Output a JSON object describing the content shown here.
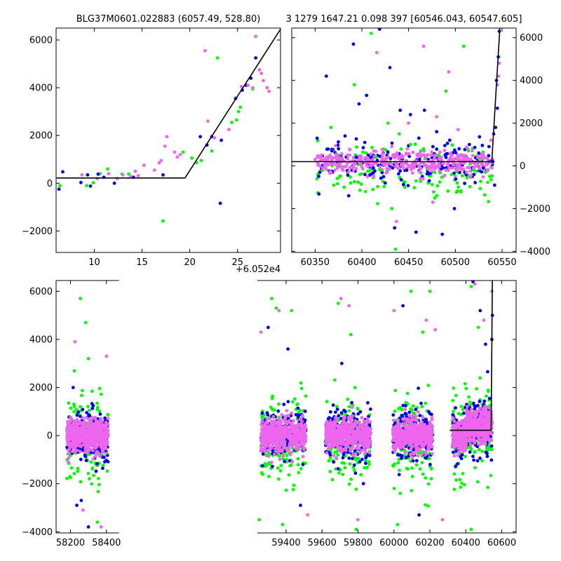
{
  "header": {
    "left_title": "BLG37M0601.022883 (6057.49, 528.80)",
    "right_title": "3 1279 1647.21 0.098 397 [60546.043, 60547.605]"
  },
  "colors": {
    "green": "#00ff00",
    "blue": "#0000ee",
    "magenta": "#ee66ee",
    "model": "#000000"
  },
  "chart_data": [
    {
      "type": "scatter",
      "panel": "top-left zoom (days relative to offset)",
      "xlim": [
        6,
        29.5
      ],
      "ylim": [
        -2900,
        6500
      ],
      "x_ticks": [
        10,
        15,
        20,
        25
      ],
      "y_ticks": [
        -2000,
        0,
        2000,
        4000,
        6000
      ],
      "x_offset_label": "+6.052e4",
      "model": [
        [
          6,
          220
        ],
        [
          19.5,
          220
        ],
        [
          29.5,
          6450
        ]
      ],
      "series": [
        {
          "color": "green",
          "points": [
            [
              6.4,
              -100
            ],
            [
              9.2,
              -100
            ],
            [
              9.9,
              20
            ],
            [
              10.6,
              400
            ],
            [
              11.4,
              600
            ],
            [
              12.9,
              380
            ],
            [
              13.6,
              380
            ],
            [
              17.2,
              -1580
            ],
            [
              19.3,
              1300
            ],
            [
              20.2,
              1050
            ],
            [
              20.7,
              860
            ],
            [
              21.2,
              950
            ],
            [
              22.3,
              1350
            ],
            [
              22.9,
              5250
            ],
            [
              24.4,
              2550
            ],
            [
              24.9,
              2650
            ],
            [
              25.1,
              3000
            ],
            [
              25.3,
              3180
            ],
            [
              26.6,
              3950
            ]
          ]
        },
        {
          "color": "blue",
          "points": [
            [
              6.3,
              -250
            ],
            [
              6.7,
              480
            ],
            [
              8.6,
              30
            ],
            [
              9.3,
              350
            ],
            [
              9.6,
              -120
            ],
            [
              10.4,
              380
            ],
            [
              11.0,
              250
            ],
            [
              12.1,
              0
            ],
            [
              14.1,
              250
            ],
            [
              17.2,
              350
            ],
            [
              21.1,
              1950
            ],
            [
              21.8,
              1600
            ],
            [
              22.3,
              1950
            ],
            [
              23.2,
              -840
            ],
            [
              23.3,
              1800
            ],
            [
              24.8,
              3550
            ],
            [
              25.5,
              3900
            ],
            [
              25.9,
              4100
            ],
            [
              26.4,
              4400
            ],
            [
              26.9,
              5250
            ]
          ]
        },
        {
          "color": "magenta",
          "points": [
            [
              8.7,
              350
            ],
            [
              10.3,
              200
            ],
            [
              11.5,
              400
            ],
            [
              12.4,
              200
            ],
            [
              13.0,
              350
            ],
            [
              13.8,
              280
            ],
            [
              14.3,
              500
            ],
            [
              14.6,
              320
            ],
            [
              15.2,
              750
            ],
            [
              16.3,
              550
            ],
            [
              16.8,
              850
            ],
            [
              17.0,
              950
            ],
            [
              17.4,
              1550
            ],
            [
              17.6,
              1950
            ],
            [
              18.4,
              1300
            ],
            [
              18.7,
              1100
            ],
            [
              19.0,
              1200
            ],
            [
              21.6,
              5550
            ],
            [
              21.9,
              2600
            ],
            [
              22.6,
              1900
            ],
            [
              24.1,
              2250
            ],
            [
              25.4,
              4050
            ],
            [
              26.1,
              4100
            ],
            [
              26.6,
              4000
            ],
            [
              26.9,
              6150
            ],
            [
              27.3,
              4750
            ],
            [
              27.5,
              4600
            ],
            [
              27.7,
              4300
            ],
            [
              28.1,
              4000
            ],
            [
              28.3,
              3850
            ]
          ]
        }
      ]
    },
    {
      "type": "scatter",
      "panel": "top-right",
      "xlim": [
        60325,
        60565
      ],
      "ylim": [
        -4050,
        6450
      ],
      "x_ticks": [
        60350,
        60400,
        60450,
        60500,
        60550
      ],
      "y_ticks": [
        -4000,
        -2000,
        0,
        2000,
        4000,
        6000
      ],
      "model": [
        [
          60325,
          200
        ],
        [
          60539,
          200
        ],
        [
          60547.6,
          6450
        ]
      ],
      "series": [
        {
          "color": "green",
          "points": [
            [
              60352,
              -600
            ],
            [
              60358,
              -200
            ],
            [
              60367,
              1800
            ],
            [
              60370,
              -900
            ],
            [
              60376,
              -500
            ],
            [
              60381,
              -1000
            ],
            [
              60388,
              -800
            ],
            [
              60392,
              3800
            ],
            [
              60398,
              -400
            ],
            [
              60404,
              -1200
            ],
            [
              60410,
              6200
            ],
            [
              60415,
              400
            ],
            [
              60420,
              -200
            ],
            [
              60428,
              2000
            ],
            [
              60432,
              -2000
            ],
            [
              60436,
              -3900
            ],
            [
              60440,
              1500
            ],
            [
              60446,
              -1000
            ],
            [
              60452,
              1000
            ],
            [
              60458,
              -700
            ],
            [
              60466,
              800
            ],
            [
              60471,
              -800
            ],
            [
              60478,
              -1500
            ],
            [
              60482,
              500
            ],
            [
              60490,
              3500
            ],
            [
              60496,
              -400
            ],
            [
              60502,
              -800
            ],
            [
              60509,
              5600
            ],
            [
              60514,
              700
            ],
            [
              60520,
              -200
            ],
            [
              60526,
              300
            ],
            [
              60532,
              -300
            ]
          ]
        },
        {
          "color": "blue",
          "points": [
            [
              60355,
              -300
            ],
            [
              60362,
              4200
            ],
            [
              60368,
              700
            ],
            [
              60375,
              800
            ],
            [
              60382,
              1400
            ],
            [
              60386,
              -1400
            ],
            [
              60391,
              5700
            ],
            [
              60394,
              400
            ],
            [
              60397,
              2900
            ],
            [
              60405,
              3300
            ],
            [
              60412,
              -100
            ],
            [
              60419,
              6400
            ],
            [
              60425,
              -800
            ],
            [
              60430,
              4600
            ],
            [
              60435,
              -2900
            ],
            [
              60441,
              2600
            ],
            [
              60448,
              -200
            ],
            [
              60452,
              2400
            ],
            [
              60458,
              -3100
            ],
            [
              60461,
              1300
            ],
            [
              60467,
              2600
            ],
            [
              60472,
              -700
            ],
            [
              60476,
              900
            ],
            [
              60480,
              1600
            ],
            [
              60486,
              -3200
            ],
            [
              60490,
              400
            ],
            [
              60494,
              1200
            ],
            [
              60499,
              -2000
            ],
            [
              60504,
              800
            ],
            [
              60510,
              -300
            ],
            [
              60515,
              1000
            ],
            [
              60520,
              -400
            ],
            [
              60525,
              600
            ],
            [
              60530,
              -100
            ],
            [
              60536,
              900
            ],
            [
              60540,
              200
            ],
            [
              60541,
              1500
            ],
            [
              60542,
              -900
            ],
            [
              60543,
              1800
            ],
            [
              60544,
              4000
            ],
            [
              60545,
              2700
            ],
            [
              60546,
              5100
            ],
            [
              60547,
              6300
            ]
          ]
        },
        {
          "color": "magenta",
          "points": [
            [
              60350,
              300
            ],
            [
              60358,
              -100
            ],
            [
              60366,
              500
            ],
            [
              60373,
              250
            ],
            [
              60380,
              -200
            ],
            [
              60387,
              500
            ],
            [
              60393,
              100
            ],
            [
              60399,
              300
            ],
            [
              60406,
              -500
            ],
            [
              60412,
              200
            ],
            [
              60416,
              5300
            ],
            [
              60422,
              400
            ],
            [
              60427,
              -300
            ],
            [
              60432,
              900
            ],
            [
              60437,
              -2600
            ],
            [
              60443,
              400
            ],
            [
              60450,
              2000
            ],
            [
              60455,
              -100
            ],
            [
              60462,
              600
            ],
            [
              60466,
              5600
            ],
            [
              60471,
              200
            ],
            [
              60476,
              -1700
            ],
            [
              60480,
              2300
            ],
            [
              60485,
              400
            ],
            [
              60490,
              -200
            ],
            [
              60493,
              4400
            ],
            [
              60497,
              300
            ],
            [
              60503,
              1700
            ],
            [
              60508,
              500
            ],
            [
              60512,
              -300
            ],
            [
              60518,
              700
            ],
            [
              60524,
              100
            ],
            [
              60530,
              400
            ],
            [
              60538,
              1200
            ],
            [
              60545,
              3800
            ],
            [
              60546,
              4200
            ],
            [
              60547,
              4800
            ]
          ]
        }
      ]
    },
    {
      "type": "scatter",
      "panel": "bottom full light curve",
      "xlim": [
        58120,
        60680
      ],
      "ylim": [
        -4050,
        6450
      ],
      "x_break": [
        58470,
        59240
      ],
      "x_ticks": [
        58200,
        58400,
        59400,
        59600,
        59800,
        60000,
        60200,
        60400,
        60600
      ],
      "y_ticks": [
        -4000,
        -2000,
        0,
        2000,
        4000,
        6000
      ],
      "model": [
        [
          60310,
          220
        ],
        [
          60541,
          220
        ],
        [
          60547.6,
          6450
        ]
      ],
      "seasons": [
        [
          58180,
          58410
        ],
        [
          59260,
          59510
        ],
        [
          59620,
          59870
        ],
        [
          59995,
          60215
        ],
        [
          60325,
          60545
        ]
      ],
      "outliers": {
        "green": [
          [
            58255,
            5700
          ],
          [
            58285,
            4700
          ],
          [
            58300,
            3200
          ],
          [
            59320,
            5700
          ],
          [
            59345,
            5300
          ],
          [
            59430,
            5200
          ],
          [
            59380,
            -3700
          ],
          [
            59250,
            -3500
          ],
          [
            59690,
            5500
          ],
          [
            59760,
            4200
          ],
          [
            59790,
            -3900
          ],
          [
            60095,
            6000
          ],
          [
            60160,
            4300
          ],
          [
            60200,
            6000
          ],
          [
            60430,
            6200
          ],
          [
            60470,
            4500
          ],
          [
            60430,
            -3900
          ],
          [
            60020,
            -3700
          ],
          [
            58350,
            -3600
          ]
        ],
        "blue": [
          [
            58215,
            2000
          ],
          [
            58235,
            -2900
          ],
          [
            58260,
            -2700
          ],
          [
            58300,
            -3800
          ],
          [
            59300,
            4500
          ],
          [
            59410,
            3600
          ],
          [
            59480,
            -2900
          ],
          [
            59710,
            3000
          ],
          [
            59830,
            -2000
          ],
          [
            60050,
            5400
          ],
          [
            60140,
            -3300
          ],
          [
            60440,
            6400
          ],
          [
            60480,
            5200
          ],
          [
            60510,
            3800
          ],
          [
            60545,
            4000
          ],
          [
            60548,
            5000
          ]
        ],
        "magenta": [
          [
            58225,
            3900
          ],
          [
            58270,
            -3100
          ],
          [
            58400,
            3300
          ],
          [
            58370,
            -3800
          ],
          [
            59260,
            4300
          ],
          [
            59360,
            5200
          ],
          [
            59520,
            -3300
          ],
          [
            59705,
            5700
          ],
          [
            59750,
            5400
          ],
          [
            59800,
            -3500
          ],
          [
            60000,
            5200
          ],
          [
            60180,
            4800
          ],
          [
            60230,
            4400
          ],
          [
            60270,
            -3500
          ],
          [
            60450,
            6300
          ],
          [
            60500,
            4800
          ],
          [
            60545,
            6000
          ]
        ]
      }
    }
  ]
}
